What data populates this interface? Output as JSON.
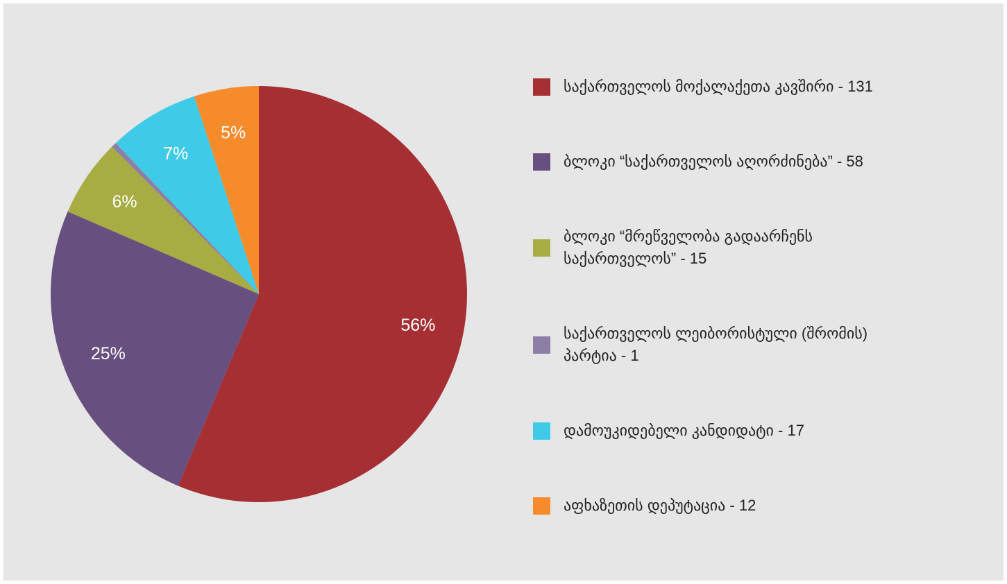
{
  "chart_data": {
    "type": "pie",
    "series": [
      {
        "name": "საქართველოს მოქალაქეთა კავშირი - 131",
        "color": "#a52f33"
      },
      {
        "name": "ბლოკი “საქართველოს აღორძინება” - 58",
        "color": "#674f80"
      },
      {
        "name": "ბლოკი “მრეწველობა გადაარჩენს საქართველოს” - 15",
        "color": "#a7ad42"
      },
      {
        "name": "საქართველოს ლეიბორისტული (შრომის) პარტია - 1",
        "color": "#8c7fa6"
      },
      {
        "name": "დამოუკიდებელი კანდიდატი - 17",
        "color": "#3fcbe8"
      },
      {
        "name": "აფხაზეთის დეპუტაცია - 12",
        "color": "#f68b2c"
      }
    ],
    "values": [
      56,
      25,
      6,
      0.4,
      7,
      5
    ],
    "value_labels": [
      "56%",
      "25%",
      "6%",
      null,
      "7%",
      "5%"
    ],
    "legend": "right"
  }
}
